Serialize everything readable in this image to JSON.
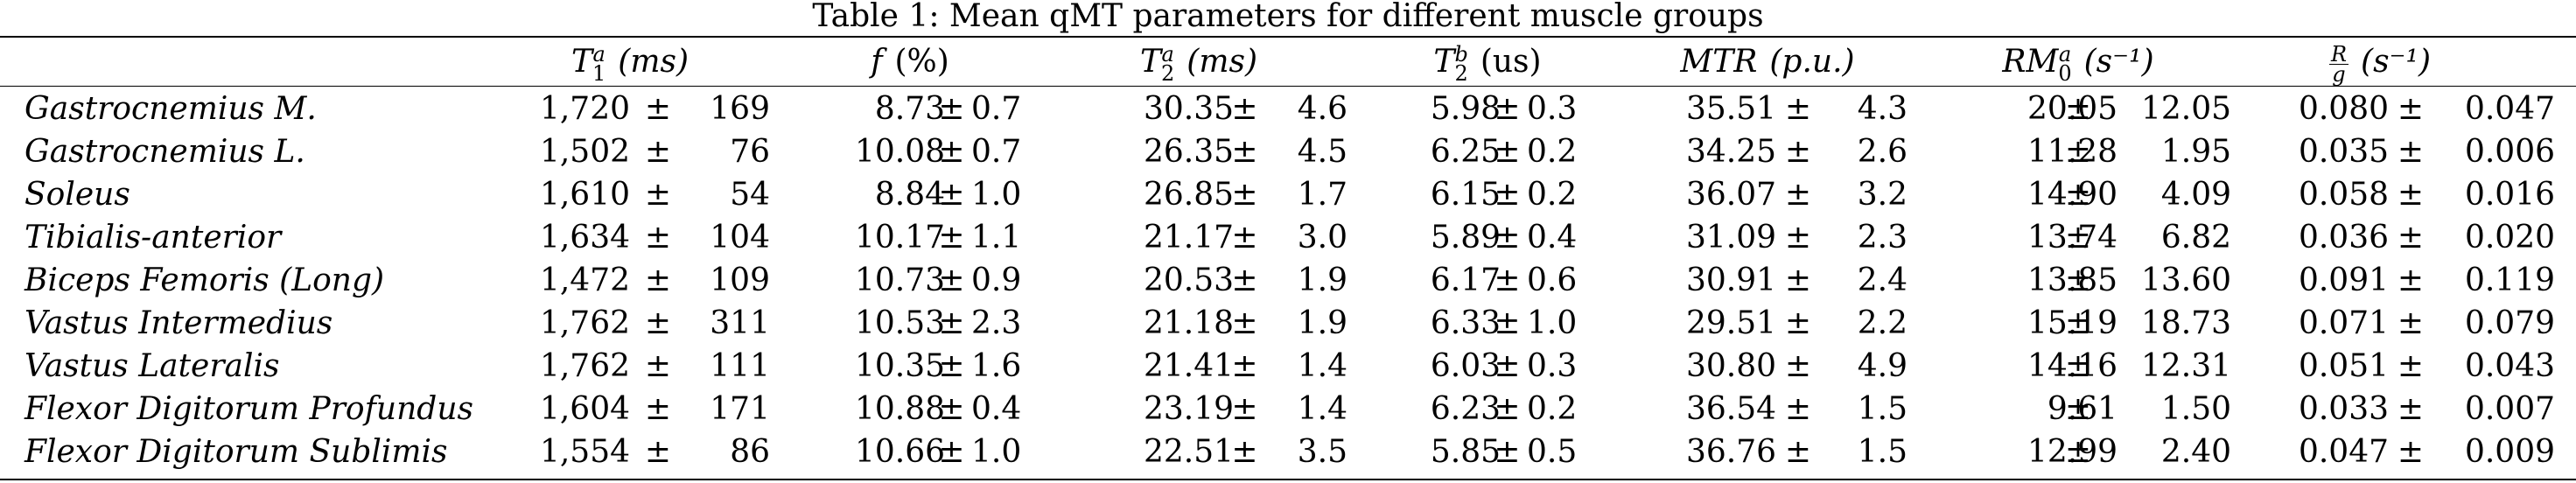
{
  "caption": "Table 1: Mean qMT parameters for different muscle groups",
  "headers": [
    {
      "sym": "T",
      "sub": "1",
      "sup": "a",
      "unit": "(ms)",
      "unit_italic": true
    },
    {
      "sym": "f",
      "sub": "",
      "sup": "",
      "unit": "(%)",
      "unit_italic": false
    },
    {
      "sym": "T",
      "sub": "2",
      "sup": "a",
      "unit": "(ms)",
      "unit_italic": true
    },
    {
      "sym": "T",
      "sub": "2",
      "sup": "b",
      "unit": "(us)",
      "unit_italic": false
    },
    {
      "sym": "MTR",
      "sub": "",
      "sup": "",
      "unit": "(p.u.)",
      "unit_italic": true
    },
    {
      "sym": "RM",
      "sub": "0",
      "sup": "a",
      "unit": "(s⁻¹)",
      "unit_italic": true
    },
    {
      "sym": "",
      "frac_num": "R",
      "frac_den": "g",
      "unit": "(s⁻¹)",
      "unit_italic": true
    }
  ],
  "pm": "±",
  "rows": [
    {
      "name": "Gastrocnemius M.",
      "v": [
        [
          "1,720",
          "169"
        ],
        [
          "8.73",
          "0.7"
        ],
        [
          "30.35",
          "4.6"
        ],
        [
          "5.98",
          "0.3"
        ],
        [
          "35.51",
          "4.3"
        ],
        [
          "20.05",
          "12.05"
        ],
        [
          "0.080",
          "0.047"
        ]
      ]
    },
    {
      "name": "Gastrocnemius L.",
      "v": [
        [
          "1,502",
          "76"
        ],
        [
          "10.08",
          "0.7"
        ],
        [
          "26.35",
          "4.5"
        ],
        [
          "6.25",
          "0.2"
        ],
        [
          "34.25",
          "2.6"
        ],
        [
          "11.28",
          "1.95"
        ],
        [
          "0.035",
          "0.006"
        ]
      ]
    },
    {
      "name": "Soleus",
      "v": [
        [
          "1,610",
          "54"
        ],
        [
          "8.84",
          "1.0"
        ],
        [
          "26.85",
          "1.7"
        ],
        [
          "6.15",
          "0.2"
        ],
        [
          "36.07",
          "3.2"
        ],
        [
          "14.90",
          "4.09"
        ],
        [
          "0.058",
          "0.016"
        ]
      ]
    },
    {
      "name": "Tibialis-anterior",
      "v": [
        [
          "1,634",
          "104"
        ],
        [
          "10.17",
          "1.1"
        ],
        [
          "21.17",
          "3.0"
        ],
        [
          "5.89",
          "0.4"
        ],
        [
          "31.09",
          "2.3"
        ],
        [
          "13.74",
          "6.82"
        ],
        [
          "0.036",
          "0.020"
        ]
      ]
    },
    {
      "name": "Biceps Femoris (Long)",
      "v": [
        [
          "1,472",
          "109"
        ],
        [
          "10.73",
          "0.9"
        ],
        [
          "20.53",
          "1.9"
        ],
        [
          "6.17",
          "0.6"
        ],
        [
          "30.91",
          "2.4"
        ],
        [
          "13.85",
          "13.60"
        ],
        [
          "0.091",
          "0.119"
        ]
      ]
    },
    {
      "name": "Vastus Intermedius",
      "v": [
        [
          "1,762",
          "311"
        ],
        [
          "10.53",
          "2.3"
        ],
        [
          "21.18",
          "1.9"
        ],
        [
          "6.33",
          "1.0"
        ],
        [
          "29.51",
          "2.2"
        ],
        [
          "15.19",
          "18.73"
        ],
        [
          "0.071",
          "0.079"
        ]
      ]
    },
    {
      "name": "Vastus Lateralis",
      "v": [
        [
          "1,762",
          "111"
        ],
        [
          "10.35",
          "1.6"
        ],
        [
          "21.41",
          "1.4"
        ],
        [
          "6.03",
          "0.3"
        ],
        [
          "30.80",
          "4.9"
        ],
        [
          "14.16",
          "12.31"
        ],
        [
          "0.051",
          "0.043"
        ]
      ]
    },
    {
      "name": "Flexor Digitorum Profundus",
      "v": [
        [
          "1,604",
          "171"
        ],
        [
          "10.88",
          "0.4"
        ],
        [
          "23.19",
          "1.4"
        ],
        [
          "6.23",
          "0.2"
        ],
        [
          "36.54",
          "1.5"
        ],
        [
          "9.61",
          "1.50"
        ],
        [
          "0.033",
          "0.007"
        ]
      ]
    },
    {
      "name": "Flexor Digitorum Sublimis",
      "v": [
        [
          "1,554",
          "86"
        ],
        [
          "10.66",
          "1.0"
        ],
        [
          "22.51",
          "3.5"
        ],
        [
          "5.85",
          "0.5"
        ],
        [
          "36.76",
          "1.5"
        ],
        [
          "12.99",
          "2.40"
        ],
        [
          "0.047",
          "0.009"
        ]
      ]
    }
  ]
}
